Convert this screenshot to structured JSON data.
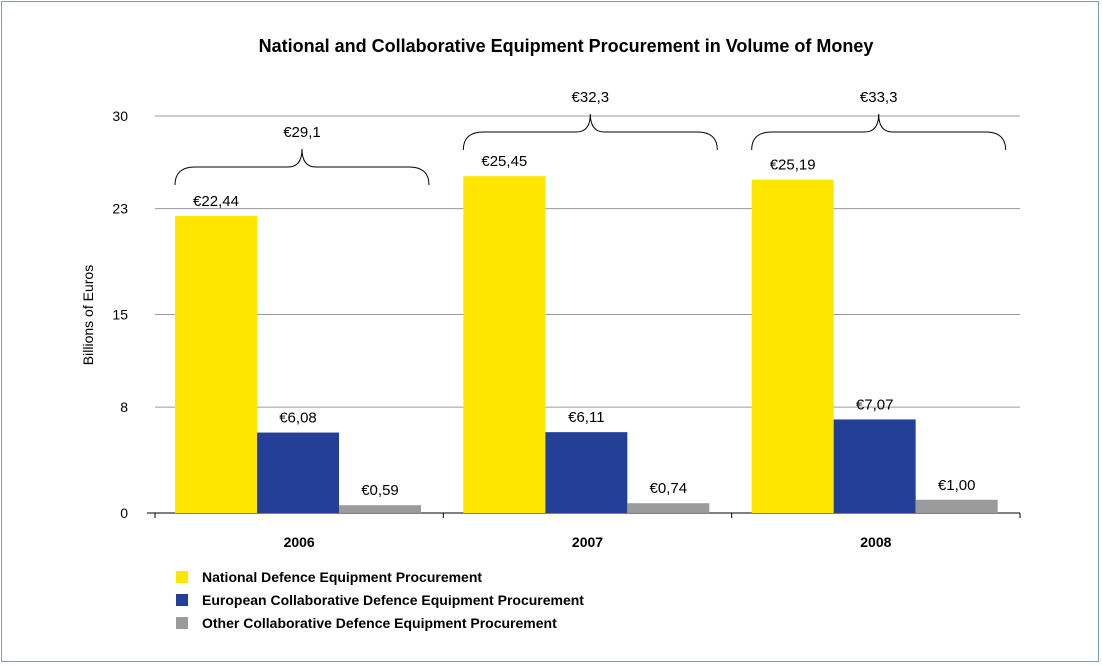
{
  "chart_data": {
    "type": "bar",
    "title": "National and Collaborative Equipment Procurement in Volume of Money",
    "ylabel": "Billions of Euros",
    "xlabel": "",
    "ylim": [
      0,
      30
    ],
    "yticks": [
      "0",
      "8",
      "15",
      "23",
      "30"
    ],
    "grid": true,
    "legend_position": "bottom-left",
    "categories": [
      "2006",
      "2007",
      "2008"
    ],
    "series": [
      {
        "name": "National Defence Equipment Procurement",
        "color": "#ffe600",
        "values": [
          22.44,
          25.45,
          25.19
        ],
        "labels": [
          "€22,44",
          "€25,45",
          "€25,19"
        ]
      },
      {
        "name": "European Collaborative Defence Equipment Procurement",
        "color": "#233f96",
        "values": [
          6.08,
          6.11,
          7.07
        ],
        "labels": [
          "€6,08",
          "€6,11",
          "€7,07"
        ]
      },
      {
        "name": "Other Collaborative Defence Equipment Procurement",
        "color": "#9b9b9b",
        "values": [
          0.59,
          0.74,
          1.0
        ],
        "labels": [
          "€0,59",
          "€0,74",
          "€1,00"
        ]
      }
    ],
    "totals": [
      29.1,
      32.3,
      33.3
    ],
    "total_labels": [
      "€29,1",
      "€32,3",
      "€33,3"
    ]
  }
}
